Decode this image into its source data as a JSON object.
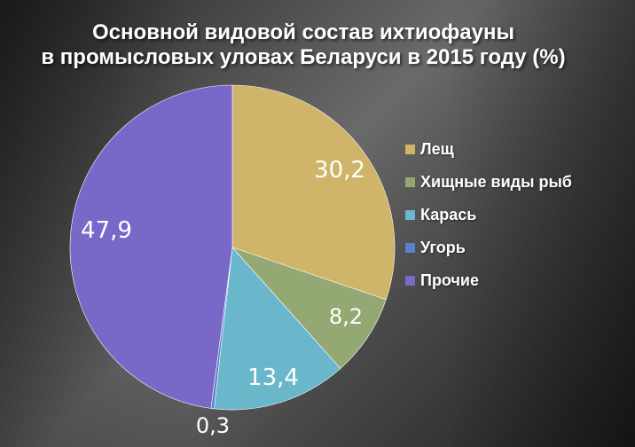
{
  "chart_data": {
    "type": "pie",
    "title_lines": [
      "Основной видовой состав ихтиофауны",
      "в промысловых уловах  Беларуси в 2015 году (%)"
    ],
    "slices": [
      {
        "label": "Лещ",
        "value": 30.2,
        "display": "30,2",
        "color": "#cfb46a"
      },
      {
        "label": "Хищные виды рыб",
        "value": 8.2,
        "display": "8,2",
        "color": "#93a873"
      },
      {
        "label": "Карась",
        "value": 13.4,
        "display": "13,4",
        "color": "#6ab7cc"
      },
      {
        "label": "Угорь",
        "value": 0.3,
        "display": "0,3",
        "color": "#5a7fcf"
      },
      {
        "label": "Прочие",
        "value": 47.9,
        "display": "47,9",
        "color": "#7a68c9"
      }
    ],
    "legend_position": "right"
  }
}
